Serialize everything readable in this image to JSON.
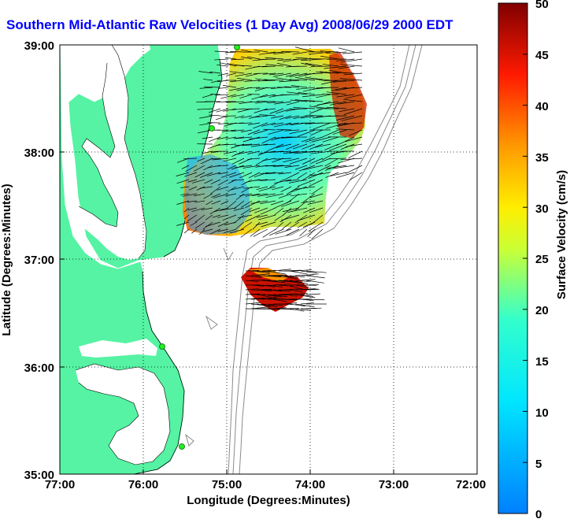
{
  "title": "Southern Mid-Atlantic Raw Velocities (1 Day Avg) 2008/06/29 2000 EDT",
  "map": {
    "xlabel": "Longitude (Degrees:Minutes)",
    "ylabel": "Latitude (Degrees:Minutes)",
    "lon_ticks": [
      "77:00",
      "76:00",
      "75:00",
      "74:00",
      "73:00",
      "72:00"
    ],
    "lat_ticks": [
      "35:00",
      "36:00",
      "37:00",
      "38:00",
      "39:00"
    ],
    "lon_range_deg_west": [
      77,
      72
    ],
    "lat_range_deg": [
      35,
      39
    ],
    "grid": "dotted",
    "land_color": "#55f3a3",
    "water_color": "#ffffff",
    "bathymetry_color": "#8a8a8a",
    "station_marker_color": "#22ee22"
  },
  "colorbar": {
    "label": "Surface Velocity (cm/s)",
    "ticks": [
      "0",
      "5",
      "10",
      "15",
      "20",
      "25",
      "30",
      "35",
      "40",
      "45",
      "50"
    ],
    "range": [
      0,
      50
    ],
    "colormap": "jet"
  }
}
